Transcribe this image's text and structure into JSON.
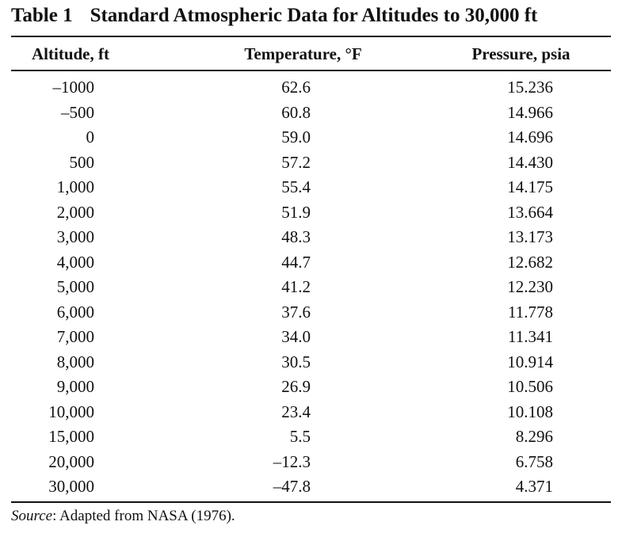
{
  "caption": {
    "label": "Table 1",
    "title": "Standard Atmospheric Data for Altitudes to 30,000 ft"
  },
  "columns": [
    "Altitude, ft",
    "Temperature, °F",
    "Pressure, psia"
  ],
  "rows": [
    [
      "–1000",
      "62.6",
      "15.236"
    ],
    [
      "–500",
      "60.8",
      "14.966"
    ],
    [
      "0",
      "59.0",
      "14.696"
    ],
    [
      "500",
      "57.2",
      "14.430"
    ],
    [
      "1,000",
      "55.4",
      "14.175"
    ],
    [
      "2,000",
      "51.9",
      "13.664"
    ],
    [
      "3,000",
      "48.3",
      "13.173"
    ],
    [
      "4,000",
      "44.7",
      "12.682"
    ],
    [
      "5,000",
      "41.2",
      "12.230"
    ],
    [
      "6,000",
      "37.6",
      "11.778"
    ],
    [
      "7,000",
      "34.0",
      "11.341"
    ],
    [
      "8,000",
      "30.5",
      "10.914"
    ],
    [
      "9,000",
      "26.9",
      "10.506"
    ],
    [
      "10,000",
      "23.4",
      "10.108"
    ],
    [
      "15,000",
      "5.5",
      "8.296"
    ],
    [
      "20,000",
      "–12.3",
      "6.758"
    ],
    [
      "30,000",
      "–47.8",
      "4.371"
    ]
  ],
  "source": {
    "label": "Source",
    "text": ": Adapted from NASA (1976)."
  }
}
